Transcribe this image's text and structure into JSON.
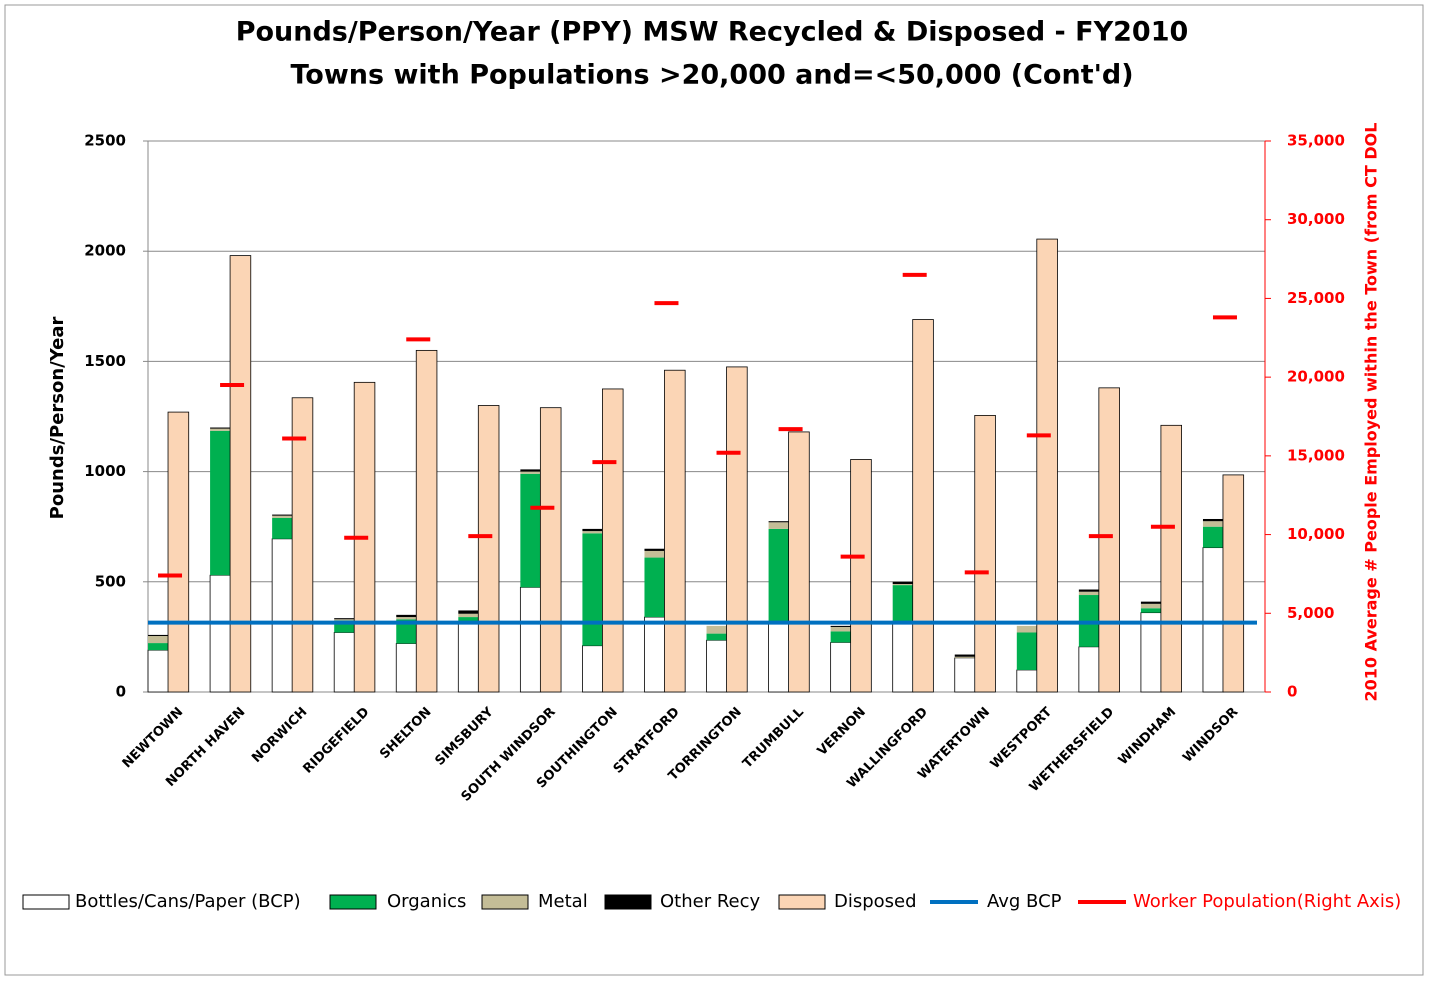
{
  "chart_data": {
    "type": "bar",
    "title": "Pounds/Person/Year (PPY) MSW Recycled & Disposed - FY2010",
    "subtitle": "Towns with Populations >20,000 and=<50,000 (Cont'd)",
    "y_label": "Pounds/Person/Year",
    "y2_label": "2010 Average # People Employed within the Town (from CT DOL",
    "categories": [
      "NEWTOWN",
      "NORTH HAVEN",
      "NORWICH",
      "RIDGEFIELD",
      "SHELTON",
      "SIMSBURY",
      "SOUTH WINDSOR",
      "SOUTHINGTON",
      "STRATFORD",
      "TORRINGTON",
      "TRUMBULL",
      "VERNON",
      "WALLINGFORD",
      "WATERTOWN",
      "WESTPORT",
      "WETHERSFIELD",
      "WINDHAM",
      "WINDSOR"
    ],
    "ylim": [
      0,
      2500
    ],
    "yticks": [
      0,
      500,
      1000,
      1500,
      2000,
      2500
    ],
    "y2lim": [
      0,
      35000
    ],
    "y2ticks": [
      0,
      {
        "value": 5000,
        "label": "5,000"
      },
      {
        "value": 10000,
        "label": "10,000"
      },
      {
        "value": 15000,
        "label": "15,000"
      },
      {
        "value": 20000,
        "label": "20,000"
      },
      {
        "value": 25000,
        "label": "25,000"
      },
      {
        "value": 30000,
        "label": "30,000"
      },
      {
        "value": 35000,
        "label": "35,000"
      }
    ],
    "grid": true,
    "legend": "bottom",
    "series": [
      {
        "name": "Bottles/Cans/Paper (BCP)",
        "type": "bar",
        "position": "left",
        "color": "#ffffff",
        "values": [
          190,
          530,
          695,
          270,
          220,
          320,
          475,
          210,
          340,
          235,
          320,
          225,
          320,
          155,
          100,
          205,
          360,
          655
        ]
      },
      {
        "name": "Organics",
        "type": "bar",
        "position": "left",
        "color": "#00b050",
        "values": [
          32,
          655,
          95,
          55,
          110,
          20,
          515,
          510,
          270,
          30,
          420,
          50,
          165,
          0,
          170,
          235,
          20,
          95
        ]
      },
      {
        "name": "Metal",
        "type": "bar",
        "position": "left",
        "color": "#c4bd97",
        "values": [
          32,
          10,
          10,
          5,
          10,
          15,
          10,
          10,
          30,
          35,
          30,
          20,
          5,
          5,
          30,
          15,
          20,
          25
        ]
      },
      {
        "name": "Other Recy",
        "type": "bar",
        "position": "left",
        "color": "#000000",
        "values": [
          5,
          5,
          5,
          5,
          10,
          15,
          10,
          10,
          10,
          0,
          5,
          5,
          10,
          10,
          0,
          10,
          10,
          10
        ]
      },
      {
        "name": "Disposed",
        "type": "bar",
        "position": "right",
        "color": "#fbd5b5",
        "values": [
          1270,
          1980,
          1335,
          1405,
          1550,
          1300,
          1290,
          1375,
          1460,
          1475,
          1180,
          1055,
          1690,
          1255,
          2055,
          1380,
          1210,
          985
        ]
      },
      {
        "name": "Avg BCP",
        "type": "line",
        "color": "#0070c0",
        "values": [
          315,
          315,
          315,
          315,
          315,
          315,
          315,
          315,
          315,
          315,
          315,
          315,
          315,
          315,
          315,
          315,
          315,
          315
        ]
      },
      {
        "name": "Worker Population(Right  Axis)",
        "type": "marker",
        "axis": "y2",
        "color": "#ff0000",
        "values": [
          7400,
          19500,
          16100,
          9800,
          22400,
          9900,
          11700,
          14600,
          24700,
          15200,
          16700,
          8600,
          26500,
          7600,
          16300,
          9900,
          10500,
          23800
        ]
      }
    ]
  }
}
